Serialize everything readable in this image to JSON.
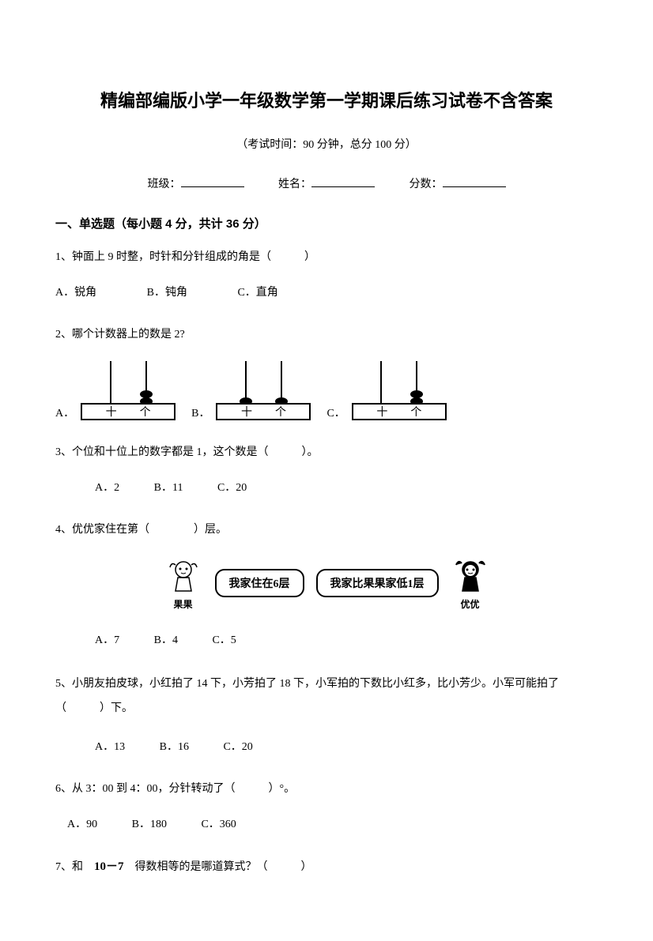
{
  "title": "精编部编版小学一年级数学第一学期课后练习试卷不含答案",
  "subtitle": "（考试时间：90 分钟，总分 100 分）",
  "info": {
    "class_label": "班级：",
    "name_label": "姓名：",
    "score_label": "分数："
  },
  "section1": {
    "header": "一、单选题（每小题 4 分，共计 36 分）"
  },
  "q1": {
    "text": "1、钟面上 9 时整，时针和分针组成的角是（　　　）",
    "optA": "A．锐角",
    "optB": "B．钝角",
    "optC": "C．直角"
  },
  "q2": {
    "text": "2、哪个计数器上的数是 2?",
    "labelA": "A．",
    "labelB": "B．",
    "labelC": "C．",
    "tens_char": "十",
    "ones_char": "个",
    "abacusA": {
      "tens_beads": 0,
      "ones_beads": 2
    },
    "abacusB": {
      "tens_beads": 1,
      "ones_beads": 1
    },
    "abacusC": {
      "tens_beads": 0,
      "ones_beads": 2
    }
  },
  "q3": {
    "text": "3、个位和十位上的数字都是 1，这个数是（　　　）。",
    "optA": "A．2",
    "optB": "B．11",
    "optC": "C．20"
  },
  "q4": {
    "text": "4、优优家住在第（　　　　）层。",
    "bubble1": "我家住在6层",
    "bubble2": "我家比果果家低1层",
    "char1_name": "果果",
    "char2_name": "优优",
    "optA": "A．7",
    "optB": "B．4",
    "optC": "C．5"
  },
  "q5": {
    "text": "5、小朋友拍皮球，小红拍了 14 下，小芳拍了 18 下，小军拍的下数比小红多，比小芳少。小军可能拍了（　　　）下。",
    "optA": "A．13",
    "optB": "B．16",
    "optC": "C．20"
  },
  "q6": {
    "text": "6、从 3：00 到 4：00，分针转动了（　　　）°。",
    "optA": "A．90",
    "optB": "B．180",
    "optC": "C．360"
  },
  "q7": {
    "text_pre": "7、和　",
    "expr": "10－7",
    "text_post": "　得数相等的是哪道算式？（　　　）"
  }
}
